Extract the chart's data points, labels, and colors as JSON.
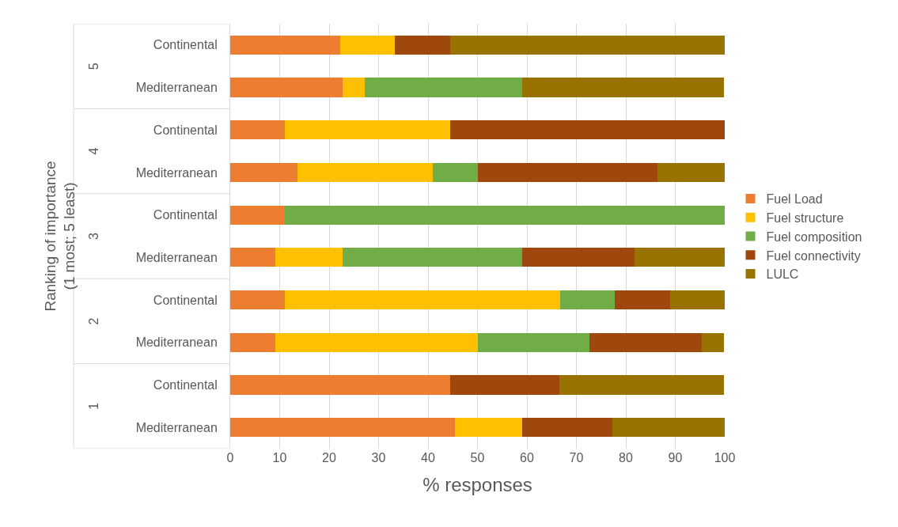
{
  "chart_data": {
    "type": "bar",
    "orientation": "horizontal",
    "stacked": true,
    "xlabel": "% responses",
    "ylabel": "Ranking of importance\n(1 most; 5 least)",
    "categories": [
      "Continental",
      "Mediterranean",
      "Continental",
      "Mediterranean",
      "Continental",
      "Mediterranean",
      "Continental",
      "Mediterranean",
      "Continental",
      "Mediterranean"
    ],
    "annotations": [
      "5",
      "4",
      "3",
      "2",
      "1"
    ],
    "series": [
      {
        "name": "Fuel Load",
        "color": "#ed7d31",
        "values": [
          22.2,
          22.7,
          11.1,
          13.6,
          11.1,
          9.1,
          11.1,
          9.1,
          44.4,
          45.5
        ]
      },
      {
        "name": "Fuel structure",
        "color": "#ffc000",
        "values": [
          11.1,
          4.5,
          33.3,
          27.3,
          0,
          13.6,
          55.6,
          40.9,
          0,
          13.6
        ]
      },
      {
        "name": "Fuel composition",
        "color": "#70ad47",
        "values": [
          0,
          31.8,
          0,
          9.1,
          88.9,
          36.4,
          11.1,
          22.7,
          0,
          0
        ]
      },
      {
        "name": "Fuel connectivity",
        "color": "#9e480e",
        "values": [
          11.1,
          0,
          55.6,
          36.4,
          0,
          22.7,
          11.1,
          22.7,
          22.2,
          18.2
        ]
      },
      {
        "name": "LULC",
        "color": "#997300",
        "values": [
          55.6,
          40.9,
          0,
          13.6,
          0,
          18.2,
          11.1,
          4.5,
          33.3,
          22.7
        ]
      }
    ],
    "xlim": [
      0,
      100
    ],
    "xticks": [
      0,
      10,
      20,
      30,
      40,
      50,
      60,
      70,
      80,
      90,
      100
    ],
    "grid": "x",
    "legend": "right"
  }
}
